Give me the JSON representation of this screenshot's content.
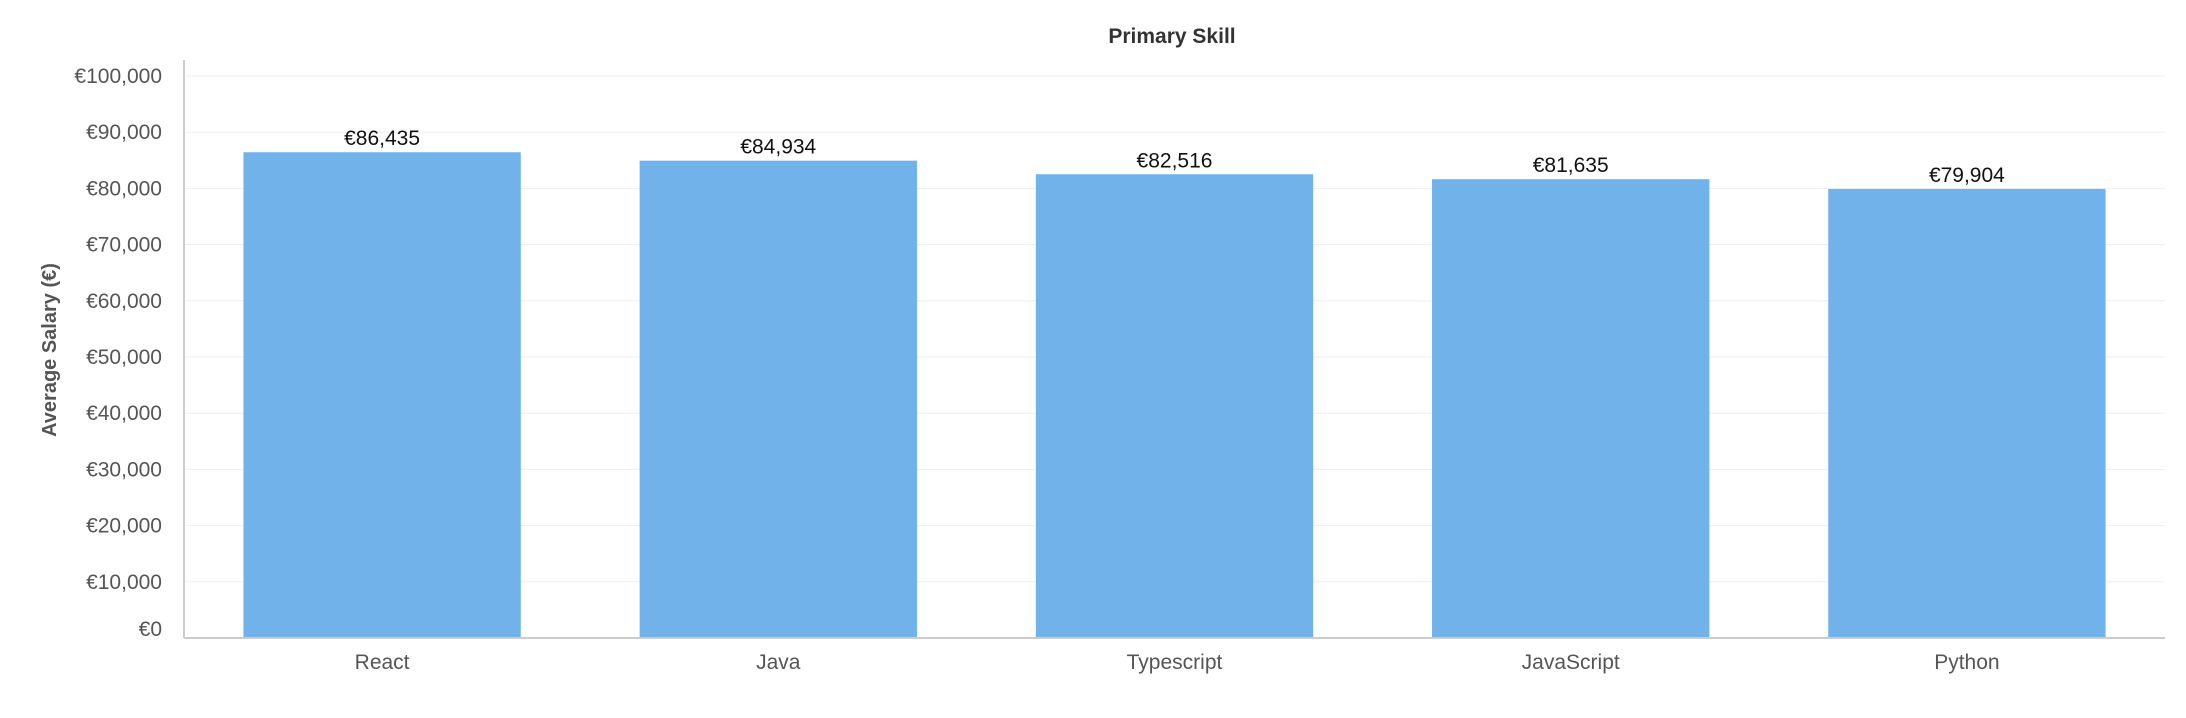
{
  "chart_data": {
    "type": "bar",
    "title": "Primary Skill",
    "xlabel": "",
    "ylabel": "Average Salary (€)",
    "categories": [
      "React",
      "Java",
      "Typescript",
      "JavaScript",
      "Python"
    ],
    "values": [
      86435,
      84934,
      82516,
      81635,
      79904
    ],
    "data_labels": [
      "€86,435",
      "€84,934",
      "€82,516",
      "€81,635",
      "€79,904"
    ],
    "ylim": [
      0,
      100000
    ],
    "yticks": [
      0,
      10000,
      20000,
      30000,
      40000,
      50000,
      60000,
      70000,
      80000,
      90000,
      100000
    ],
    "ytick_labels": [
      "€0",
      "€10,000",
      "€20,000",
      "€30,000",
      "€40,000",
      "€50,000",
      "€60,000",
      "€70,000",
      "€80,000",
      "€90,000",
      "€100,000"
    ],
    "grid": true,
    "legend": "none",
    "bar_color": "#71b2ea"
  }
}
